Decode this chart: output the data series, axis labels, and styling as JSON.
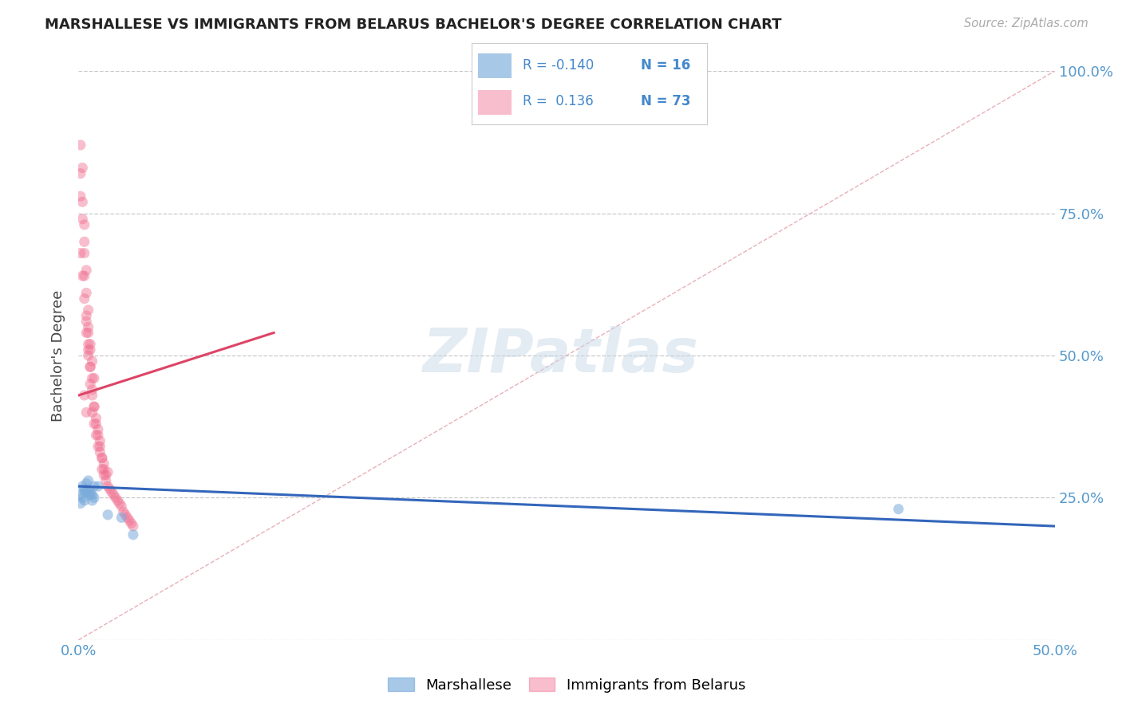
{
  "title": "MARSHALLESE VS IMMIGRANTS FROM BELARUS BACHELOR'S DEGREE CORRELATION CHART",
  "source_text": "Source: ZipAtlas.com",
  "ylabel": "Bachelor's Degree",
  "xlim": [
    0.0,
    0.5
  ],
  "ylim": [
    0.0,
    1.0
  ],
  "ytick_positions": [
    0.0,
    0.25,
    0.5,
    0.75,
    1.0
  ],
  "ytick_labels": [
    "",
    "25.0%",
    "50.0%",
    "75.0%",
    "100.0%"
  ],
  "grid_color": "#c8c8c8",
  "background_color": "#ffffff",
  "blue_color": "#7aabdb",
  "pink_color": "#f07090",
  "blue_line_color": "#3366bb",
  "pink_line_color": "#dd4466",
  "diag_line_color": "#e8b0b8",
  "blue_scatter_x": [
    0.001,
    0.002,
    0.003,
    0.004,
    0.005,
    0.006,
    0.007,
    0.008,
    0.003,
    0.01,
    0.015,
    0.022,
    0.028,
    0.42
  ],
  "blue_scatter_y": [
    0.255,
    0.27,
    0.26,
    0.275,
    0.28,
    0.26,
    0.255,
    0.27,
    0.265,
    0.27,
    0.22,
    0.215,
    0.185,
    0.23
  ],
  "blue_scatter_x2": [
    0.001,
    0.002,
    0.003,
    0.004,
    0.005,
    0.006,
    0.007,
    0.008
  ],
  "blue_scatter_y2": [
    0.24,
    0.25,
    0.245,
    0.26,
    0.265,
    0.255,
    0.245,
    0.25
  ],
  "pink_scatter_x": [
    0.001,
    0.001,
    0.002,
    0.002,
    0.003,
    0.003,
    0.003,
    0.004,
    0.004,
    0.004,
    0.005,
    0.005,
    0.005,
    0.006,
    0.006,
    0.006,
    0.007,
    0.007,
    0.007,
    0.008,
    0.008,
    0.009,
    0.009,
    0.01,
    0.01,
    0.011,
    0.011,
    0.012,
    0.012,
    0.013,
    0.013,
    0.014,
    0.015,
    0.015,
    0.016,
    0.017,
    0.018,
    0.019,
    0.02,
    0.021,
    0.022,
    0.023,
    0.024,
    0.025,
    0.026,
    0.027,
    0.028,
    0.004,
    0.005,
    0.006,
    0.007,
    0.008,
    0.009,
    0.01,
    0.011,
    0.012,
    0.013,
    0.014,
    0.005,
    0.006,
    0.007,
    0.008,
    0.001,
    0.002,
    0.003,
    0.001,
    0.002,
    0.003,
    0.004,
    0.005,
    0.003,
    0.004
  ],
  "pink_scatter_y": [
    0.87,
    0.82,
    0.83,
    0.77,
    0.73,
    0.68,
    0.64,
    0.65,
    0.61,
    0.57,
    0.58,
    0.54,
    0.5,
    0.51,
    0.48,
    0.45,
    0.46,
    0.43,
    0.4,
    0.41,
    0.38,
    0.39,
    0.36,
    0.37,
    0.34,
    0.35,
    0.33,
    0.32,
    0.3,
    0.31,
    0.29,
    0.28,
    0.295,
    0.27,
    0.265,
    0.26,
    0.255,
    0.25,
    0.245,
    0.24,
    0.235,
    0.225,
    0.22,
    0.215,
    0.21,
    0.205,
    0.2,
    0.54,
    0.51,
    0.48,
    0.44,
    0.41,
    0.38,
    0.36,
    0.34,
    0.32,
    0.3,
    0.29,
    0.55,
    0.52,
    0.49,
    0.46,
    0.78,
    0.74,
    0.7,
    0.68,
    0.64,
    0.6,
    0.56,
    0.52,
    0.43,
    0.4
  ],
  "blue_trend_x": [
    0.0,
    0.5
  ],
  "blue_trend_y": [
    0.27,
    0.2
  ],
  "pink_trend_x": [
    0.0,
    0.1
  ],
  "pink_trend_y": [
    0.43,
    0.54
  ],
  "diag_trend_x": [
    0.0,
    0.5
  ],
  "diag_trend_y": [
    0.0,
    1.0
  ],
  "watermark_text": "ZIPatlas",
  "watermark_color": "#c8d8e8",
  "watermark_alpha": 0.5,
  "legend_items": [
    {
      "color": "#7aabdb",
      "r_text": "R = -0.140",
      "n_text": "N = 16"
    },
    {
      "color": "#f07090",
      "r_text": "R =  0.136",
      "n_text": "N = 73"
    }
  ],
  "bottom_legend": [
    {
      "color": "#7aabdb",
      "label": "Marshallese"
    },
    {
      "color": "#f07090",
      "label": "Immigrants from Belarus"
    }
  ]
}
